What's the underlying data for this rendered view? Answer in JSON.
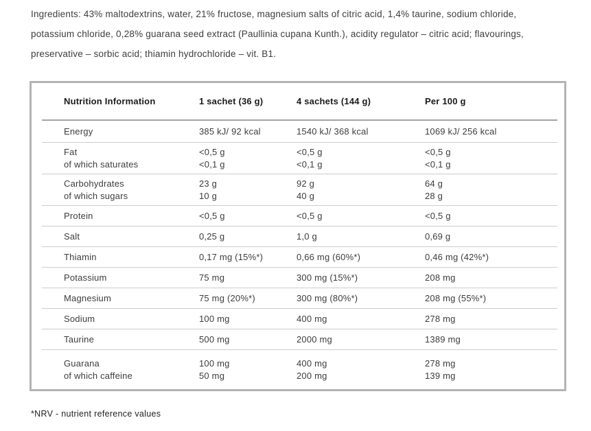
{
  "ingredients_text": "Ingredients: 43% maltodextrins, water, 21% fructose, magnesium salts of citric acid, 1,4% taurine, sodium chloride, potassium chloride, 0,28% guarana seed extract (Paullinia cupana Kunth.), acidity regulator – citric acid; flavourings, preservative – sorbic acid; thiamin hydrochloride – vit. B1.",
  "table": {
    "headers": [
      "Nutrition Information",
      "1 sachet (36 g)",
      "4 sachets (144 g)",
      "Per 100 g"
    ],
    "rows": [
      {
        "id": "energy",
        "cells": [
          [
            "Energy"
          ],
          [
            "385 kJ/ 92 kcal"
          ],
          [
            "1540 kJ/ 368 kcal"
          ],
          [
            "1069 kJ/ 256 kcal"
          ]
        ]
      },
      {
        "id": "fat",
        "cells": [
          [
            "Fat",
            "of which saturates"
          ],
          [
            "<0,5 g",
            "<0,1 g"
          ],
          [
            "<0,5 g",
            "<0,1 g"
          ],
          [
            "<0,5 g",
            "<0,1 g"
          ]
        ]
      },
      {
        "id": "carbohydrates",
        "cells": [
          [
            "Carbohydrates",
            "of which sugars"
          ],
          [
            "23 g",
            "10 g"
          ],
          [
            "92 g",
            "40 g"
          ],
          [
            "64 g",
            "28 g"
          ]
        ]
      },
      {
        "id": "protein",
        "cells": [
          [
            "Protein"
          ],
          [
            "<0,5 g"
          ],
          [
            "<0,5 g"
          ],
          [
            "<0,5 g"
          ]
        ]
      },
      {
        "id": "salt",
        "cells": [
          [
            "Salt"
          ],
          [
            "0,25 g"
          ],
          [
            "1,0 g"
          ],
          [
            "0,69 g"
          ]
        ]
      },
      {
        "id": "thiamin",
        "cells": [
          [
            "Thiamin"
          ],
          [
            "0,17 mg (15%*)"
          ],
          [
            "0,66 mg (60%*)"
          ],
          [
            "0,46 mg (42%*)"
          ]
        ]
      },
      {
        "id": "potassium",
        "cells": [
          [
            "Potassium"
          ],
          [
            "75 mg"
          ],
          [
            "300 mg (15%*)"
          ],
          [
            "208 mg"
          ]
        ]
      },
      {
        "id": "magnesium",
        "cells": [
          [
            "Magnesium"
          ],
          [
            "75 mg (20%*)"
          ],
          [
            "300 mg (80%*)"
          ],
          [
            "208 mg (55%*)"
          ]
        ]
      },
      {
        "id": "sodium",
        "cells": [
          [
            "Sodium"
          ],
          [
            "100 mg"
          ],
          [
            "400 mg"
          ],
          [
            "278 mg"
          ]
        ]
      },
      {
        "id": "taurine",
        "cells": [
          [
            "Taurine"
          ],
          [
            "500 mg"
          ],
          [
            "2000 mg"
          ],
          [
            "1389 mg"
          ]
        ]
      },
      {
        "id": "guarana",
        "cells": [
          [
            "Guarana",
            "of which caffeine"
          ],
          [
            "100 mg",
            "50 mg"
          ],
          [
            "400 mg",
            "200 mg"
          ],
          [
            "278 mg",
            "139 mg"
          ]
        ]
      }
    ]
  },
  "footnote": "*NRV - nutrient reference values"
}
